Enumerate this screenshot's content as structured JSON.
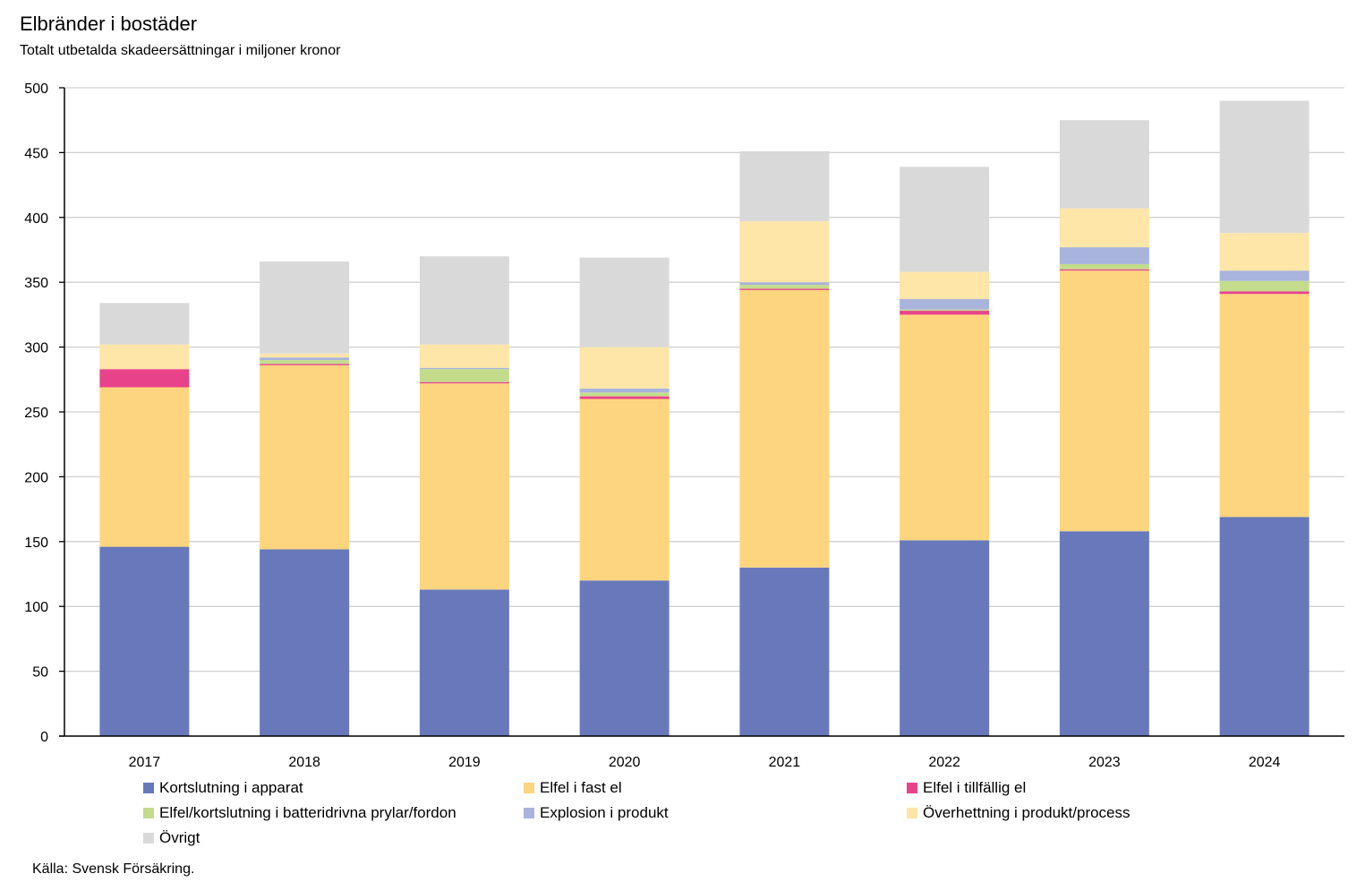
{
  "chart_data": {
    "type": "bar",
    "stacked": true,
    "title": "Elbränder i bostäder",
    "subtitle": "Totalt utbetalda skadeersättningar i miljoner kronor",
    "xlabel": "",
    "ylabel": "",
    "ylim": [
      0,
      500
    ],
    "yticks": [
      "0",
      "50",
      "100",
      "150",
      "200",
      "250",
      "300",
      "350",
      "400",
      "450",
      "500"
    ],
    "grid": true,
    "categories": [
      "2017",
      "2018",
      "2019",
      "2020",
      "2021",
      "2022",
      "2023",
      "2024"
    ],
    "series": [
      {
        "name": "Kortslutning i apparat",
        "color": "#6779BA",
        "values": [
          146,
          144,
          113,
          120,
          130,
          151,
          158,
          169
        ]
      },
      {
        "name": "Elfel i fast el",
        "color": "#FDD57E",
        "values": [
          123,
          142,
          159,
          140,
          214,
          174,
          201,
          172
        ]
      },
      {
        "name": "Elfel i tillfällig el",
        "color": "#E8438A",
        "values": [
          14,
          1,
          1,
          2,
          1,
          3,
          1,
          2
        ]
      },
      {
        "name": "Elfel/kortslutning i batteridrivna prylar/fordon",
        "color": "#C3DB8B",
        "values": [
          0,
          3,
          10,
          3,
          3,
          1,
          4,
          8
        ]
      },
      {
        "name": "Explosion i produkt",
        "color": "#A8B4DC",
        "values": [
          0,
          2,
          1,
          3,
          2,
          8,
          13,
          8
        ]
      },
      {
        "name": "Överhettning i produkt/process",
        "color": "#FEE5A8",
        "values": [
          19,
          3,
          18,
          32,
          47,
          21,
          30,
          29
        ]
      },
      {
        "name": "Övrigt",
        "color": "#D9D9D9",
        "values": [
          32,
          71,
          68,
          69,
          54,
          81,
          68,
          102
        ]
      }
    ],
    "legend_position": "bottom",
    "source": "Källa: Svensk Försäkring."
  }
}
